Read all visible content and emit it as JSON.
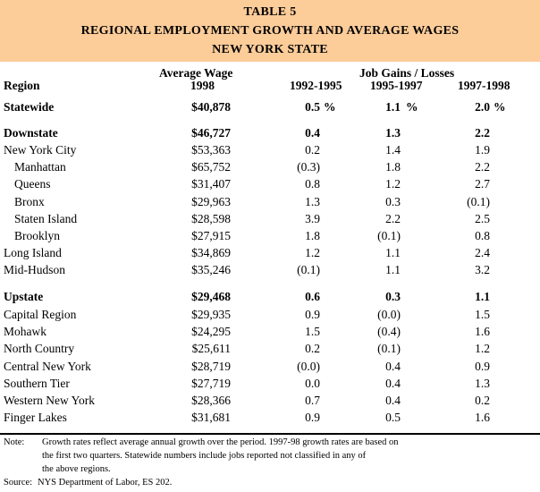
{
  "title": {
    "line1": "TABLE 5",
    "line2": "REGIONAL EMPLOYMENT GROWTH AND AVERAGE WAGES",
    "line3": "NEW YORK STATE"
  },
  "headers": {
    "avg_wage": "Average Wage",
    "job_gains": "Job Gains / Losses",
    "region": "Region",
    "year_1998": "1998",
    "p1": "1992-1995",
    "p2": "1995-1997",
    "p3": "1997-1998"
  },
  "percent_sign": "%",
  "rows": [
    {
      "region": "Statewide",
      "wage": "$40,878",
      "p1": "0.5",
      "p2": "1.1",
      "p3": "2.0",
      "bold": true,
      "indent": false,
      "pct": true
    },
    {
      "region": "Downstate",
      "wage": "$46,727",
      "p1": "0.4",
      "p2": "1.3",
      "p3": "2.2",
      "bold": true,
      "indent": false
    },
    {
      "region": "New York City",
      "wage": "$53,363",
      "p1": "0.2",
      "p2": "1.4",
      "p3": "1.9",
      "bold": false,
      "indent": false
    },
    {
      "region": "Manhattan",
      "wage": "$65,752",
      "p1": "(0.3)",
      "p2": "1.8",
      "p3": "2.2",
      "bold": false,
      "indent": true
    },
    {
      "region": "Queens",
      "wage": "$31,407",
      "p1": "0.8",
      "p2": "1.2",
      "p3": "2.7",
      "bold": false,
      "indent": true
    },
    {
      "region": "Bronx",
      "wage": "$29,963",
      "p1": "1.3",
      "p2": "0.3",
      "p3": "(0.1)",
      "bold": false,
      "indent": true
    },
    {
      "region": "Staten Island",
      "wage": "$28,598",
      "p1": "3.9",
      "p2": "2.2",
      "p3": "2.5",
      "bold": false,
      "indent": true
    },
    {
      "region": "Brooklyn",
      "wage": "$27,915",
      "p1": "1.8",
      "p2": "(0.1)",
      "p3": "0.8",
      "bold": false,
      "indent": true
    },
    {
      "region": "Long Island",
      "wage": "$34,869",
      "p1": "1.2",
      "p2": "1.1",
      "p3": "2.4",
      "bold": false,
      "indent": false
    },
    {
      "region": "Mid-Hudson",
      "wage": "$35,246",
      "p1": "(0.1)",
      "p2": "1.1",
      "p3": "3.2",
      "bold": false,
      "indent": false
    },
    {
      "region": "Upstate",
      "wage": "$29,468",
      "p1": "0.6",
      "p2": "0.3",
      "p3": "1.1",
      "bold": true,
      "indent": false
    },
    {
      "region": "Capital Region",
      "wage": "$29,935",
      "p1": "0.9",
      "p2": "(0.0)",
      "p3": "1.5",
      "bold": false,
      "indent": false
    },
    {
      "region": "Mohawk",
      "wage": "$24,295",
      "p1": "1.5",
      "p2": "(0.4)",
      "p3": "1.6",
      "bold": false,
      "indent": false
    },
    {
      "region": "North Country",
      "wage": "$25,611",
      "p1": "0.2",
      "p2": "(0.1)",
      "p3": "1.2",
      "bold": false,
      "indent": false
    },
    {
      "region": "Central New York",
      "wage": "$28,719",
      "p1": "(0.0)",
      "p2": "0.4",
      "p3": "0.9",
      "bold": false,
      "indent": false
    },
    {
      "region": "Southern Tier",
      "wage": "$27,719",
      "p1": "0.0",
      "p2": "0.4",
      "p3": "1.3",
      "bold": false,
      "indent": false
    },
    {
      "region": "Western New York",
      "wage": "$28,366",
      "p1": "0.7",
      "p2": "0.4",
      "p3": "0.2",
      "bold": false,
      "indent": false
    },
    {
      "region": "Finger Lakes",
      "wage": "$31,681",
      "p1": "0.9",
      "p2": "0.5",
      "p3": "1.6",
      "bold": false,
      "indent": false
    }
  ],
  "notes": {
    "note_label": "Note:",
    "note_line1": "Growth rates reflect average annual growth over the period.  1997-98 growth rates are based on",
    "note_line2": "the first two quarters.  Statewide numbers include jobs reported not classified in any of",
    "note_line3": "the above regions.",
    "source_label": "Source:",
    "source_text": "NYS Department of Labor, ES 202."
  }
}
